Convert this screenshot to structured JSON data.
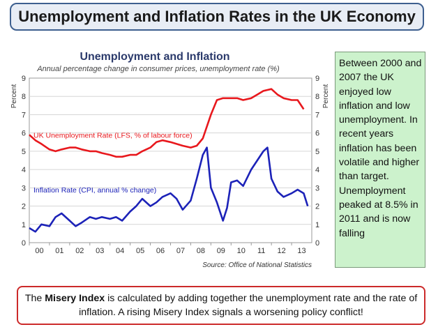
{
  "slide": {
    "title": "Unemployment and Inflation Rates in the UK Economy",
    "note": "Between 2000 and 2007 the UK enjoyed low inflation and low unemployment. In recent years inflation has been volatile and higher than target. Unemployment peaked at 8.5% in 2011 and is now falling",
    "footer_bold": "Misery Index",
    "footer_pre": "The ",
    "footer_post": " is calculated by adding together the unemployment rate and the rate of inflation. A rising Misery Index signals a worsening policy conflict!"
  },
  "colors": {
    "unemployment": "#e8181d",
    "inflation": "#1c22b8",
    "title_text": "#2b3a6b",
    "subtitle_text": "#444444"
  },
  "chart_data": {
    "type": "line",
    "title": "Unemployment and Inflation",
    "subtitle": "Annual percentage change in consumer prices, unemployment rate (%)",
    "ylabel_left": "Percent",
    "ylabel_right": "Percent",
    "source": "Source: Office of National Statistics",
    "ylim": [
      0,
      9
    ],
    "yticks": [
      "0",
      "1",
      "2",
      "3",
      "4",
      "5",
      "6",
      "7",
      "8",
      "9"
    ],
    "xlim": [
      2000,
      2014
    ],
    "xticks": [
      "00",
      "01",
      "02",
      "03",
      "04",
      "05",
      "06",
      "07",
      "08",
      "09",
      "10",
      "11",
      "12",
      "13"
    ],
    "series": [
      {
        "name": "UK Unemployment Rate (LFS, % of labour force)",
        "label_y": 5.9,
        "x": [
          2000.0,
          2000.3,
          2000.6,
          2001.0,
          2001.3,
          2001.6,
          2002.0,
          2002.3,
          2002.6,
          2003.0,
          2003.3,
          2003.6,
          2004.0,
          2004.3,
          2004.6,
          2005.0,
          2005.3,
          2005.6,
          2006.0,
          2006.3,
          2006.6,
          2007.0,
          2007.3,
          2007.6,
          2008.0,
          2008.3,
          2008.6,
          2009.0,
          2009.3,
          2009.6,
          2010.0,
          2010.3,
          2010.6,
          2011.0,
          2011.3,
          2011.6,
          2012.0,
          2012.3,
          2012.6,
          2013.0,
          2013.3,
          2013.6
        ],
        "values": [
          5.9,
          5.6,
          5.4,
          5.1,
          5.0,
          5.1,
          5.2,
          5.2,
          5.1,
          5.0,
          5.0,
          4.9,
          4.8,
          4.7,
          4.7,
          4.8,
          4.8,
          5.0,
          5.2,
          5.5,
          5.6,
          5.5,
          5.4,
          5.3,
          5.2,
          5.3,
          5.7,
          7.0,
          7.8,
          7.9,
          7.9,
          7.9,
          7.8,
          7.9,
          8.1,
          8.3,
          8.4,
          8.1,
          7.9,
          7.8,
          7.8,
          7.3
        ]
      },
      {
        "name": "Inflation Rate (CPI, annual % change)",
        "label_y": 2.9,
        "x": [
          2000.0,
          2000.3,
          2000.6,
          2001.0,
          2001.3,
          2001.6,
          2002.0,
          2002.3,
          2002.6,
          2003.0,
          2003.3,
          2003.6,
          2004.0,
          2004.3,
          2004.6,
          2005.0,
          2005.3,
          2005.6,
          2006.0,
          2006.3,
          2006.6,
          2007.0,
          2007.3,
          2007.6,
          2008.0,
          2008.3,
          2008.6,
          2008.8,
          2009.0,
          2009.3,
          2009.6,
          2009.8,
          2010.0,
          2010.3,
          2010.6,
          2011.0,
          2011.3,
          2011.6,
          2011.8,
          2012.0,
          2012.3,
          2012.6,
          2013.0,
          2013.3,
          2013.6,
          2013.8
        ],
        "values": [
          0.8,
          0.6,
          1.0,
          0.9,
          1.4,
          1.6,
          1.2,
          0.9,
          1.1,
          1.4,
          1.3,
          1.4,
          1.3,
          1.4,
          1.2,
          1.7,
          2.0,
          2.4,
          2.0,
          2.2,
          2.5,
          2.7,
          2.4,
          1.8,
          2.3,
          3.5,
          4.8,
          5.2,
          3.0,
          2.2,
          1.2,
          1.9,
          3.3,
          3.4,
          3.1,
          4.0,
          4.5,
          5.0,
          5.2,
          3.5,
          2.8,
          2.5,
          2.7,
          2.9,
          2.7,
          2.0
        ]
      }
    ]
  }
}
